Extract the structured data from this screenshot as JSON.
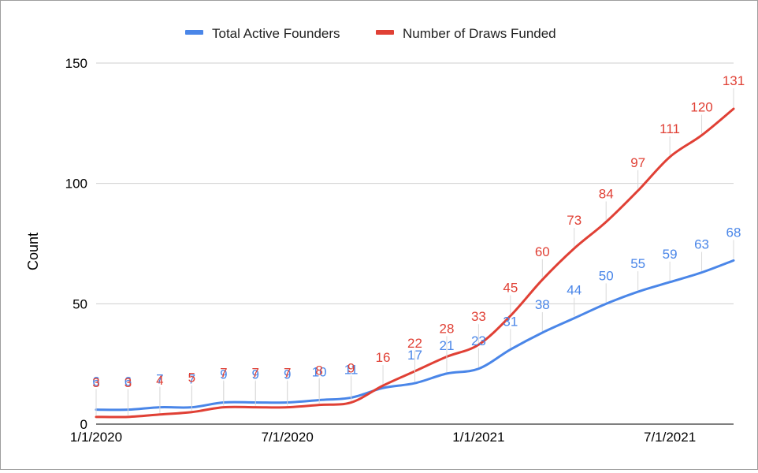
{
  "chart_data": {
    "type": "line",
    "title": "",
    "xlabel": "",
    "ylabel": "Count",
    "x_tick_labels": [
      "1/1/2020",
      "7/1/2020",
      "1/1/2021",
      "7/1/2021"
    ],
    "y_tick_labels": [
      "0",
      "50",
      "100",
      "150"
    ],
    "ylim": [
      0,
      150
    ],
    "grid": true,
    "legend_position": "top-center",
    "x": [
      "2020-01-01",
      "2020-02-01",
      "2020-03-01",
      "2020-04-01",
      "2020-05-01",
      "2020-06-01",
      "2020-07-01",
      "2020-08-01",
      "2020-09-01",
      "2020-10-01",
      "2020-11-01",
      "2020-12-01",
      "2021-01-01",
      "2021-02-01",
      "2021-03-01",
      "2021-04-01",
      "2021-05-01",
      "2021-06-01",
      "2021-07-01",
      "2021-08-01",
      "2021-09-01"
    ],
    "series": [
      {
        "name": "Total Active Founders",
        "color": "#4a86e8",
        "values": [
          6,
          6,
          7,
          7,
          9,
          9,
          9,
          10,
          11,
          15,
          17,
          21,
          23,
          31,
          38,
          44,
          50,
          55,
          59,
          63,
          68
        ],
        "labels": [
          "6",
          "6",
          "7",
          "7",
          "9",
          "9",
          "9",
          "10",
          "11",
          "",
          "17",
          "21",
          "23",
          "31",
          "38",
          "44",
          "50",
          "55",
          "59",
          "63",
          "68"
        ]
      },
      {
        "name": "Number of Draws Funded",
        "color": "#e04035",
        "values": [
          3,
          3,
          4,
          5,
          7,
          7,
          7,
          8,
          9,
          16,
          22,
          28,
          33,
          45,
          60,
          73,
          84,
          97,
          111,
          120,
          131
        ],
        "labels": [
          "3",
          "3",
          "4",
          "5",
          "7",
          "7",
          "7",
          "8",
          "9",
          "16",
          "22",
          "28",
          "33",
          "45",
          "60",
          "73",
          "84",
          "97",
          "111",
          "120",
          "131"
        ]
      }
    ]
  }
}
